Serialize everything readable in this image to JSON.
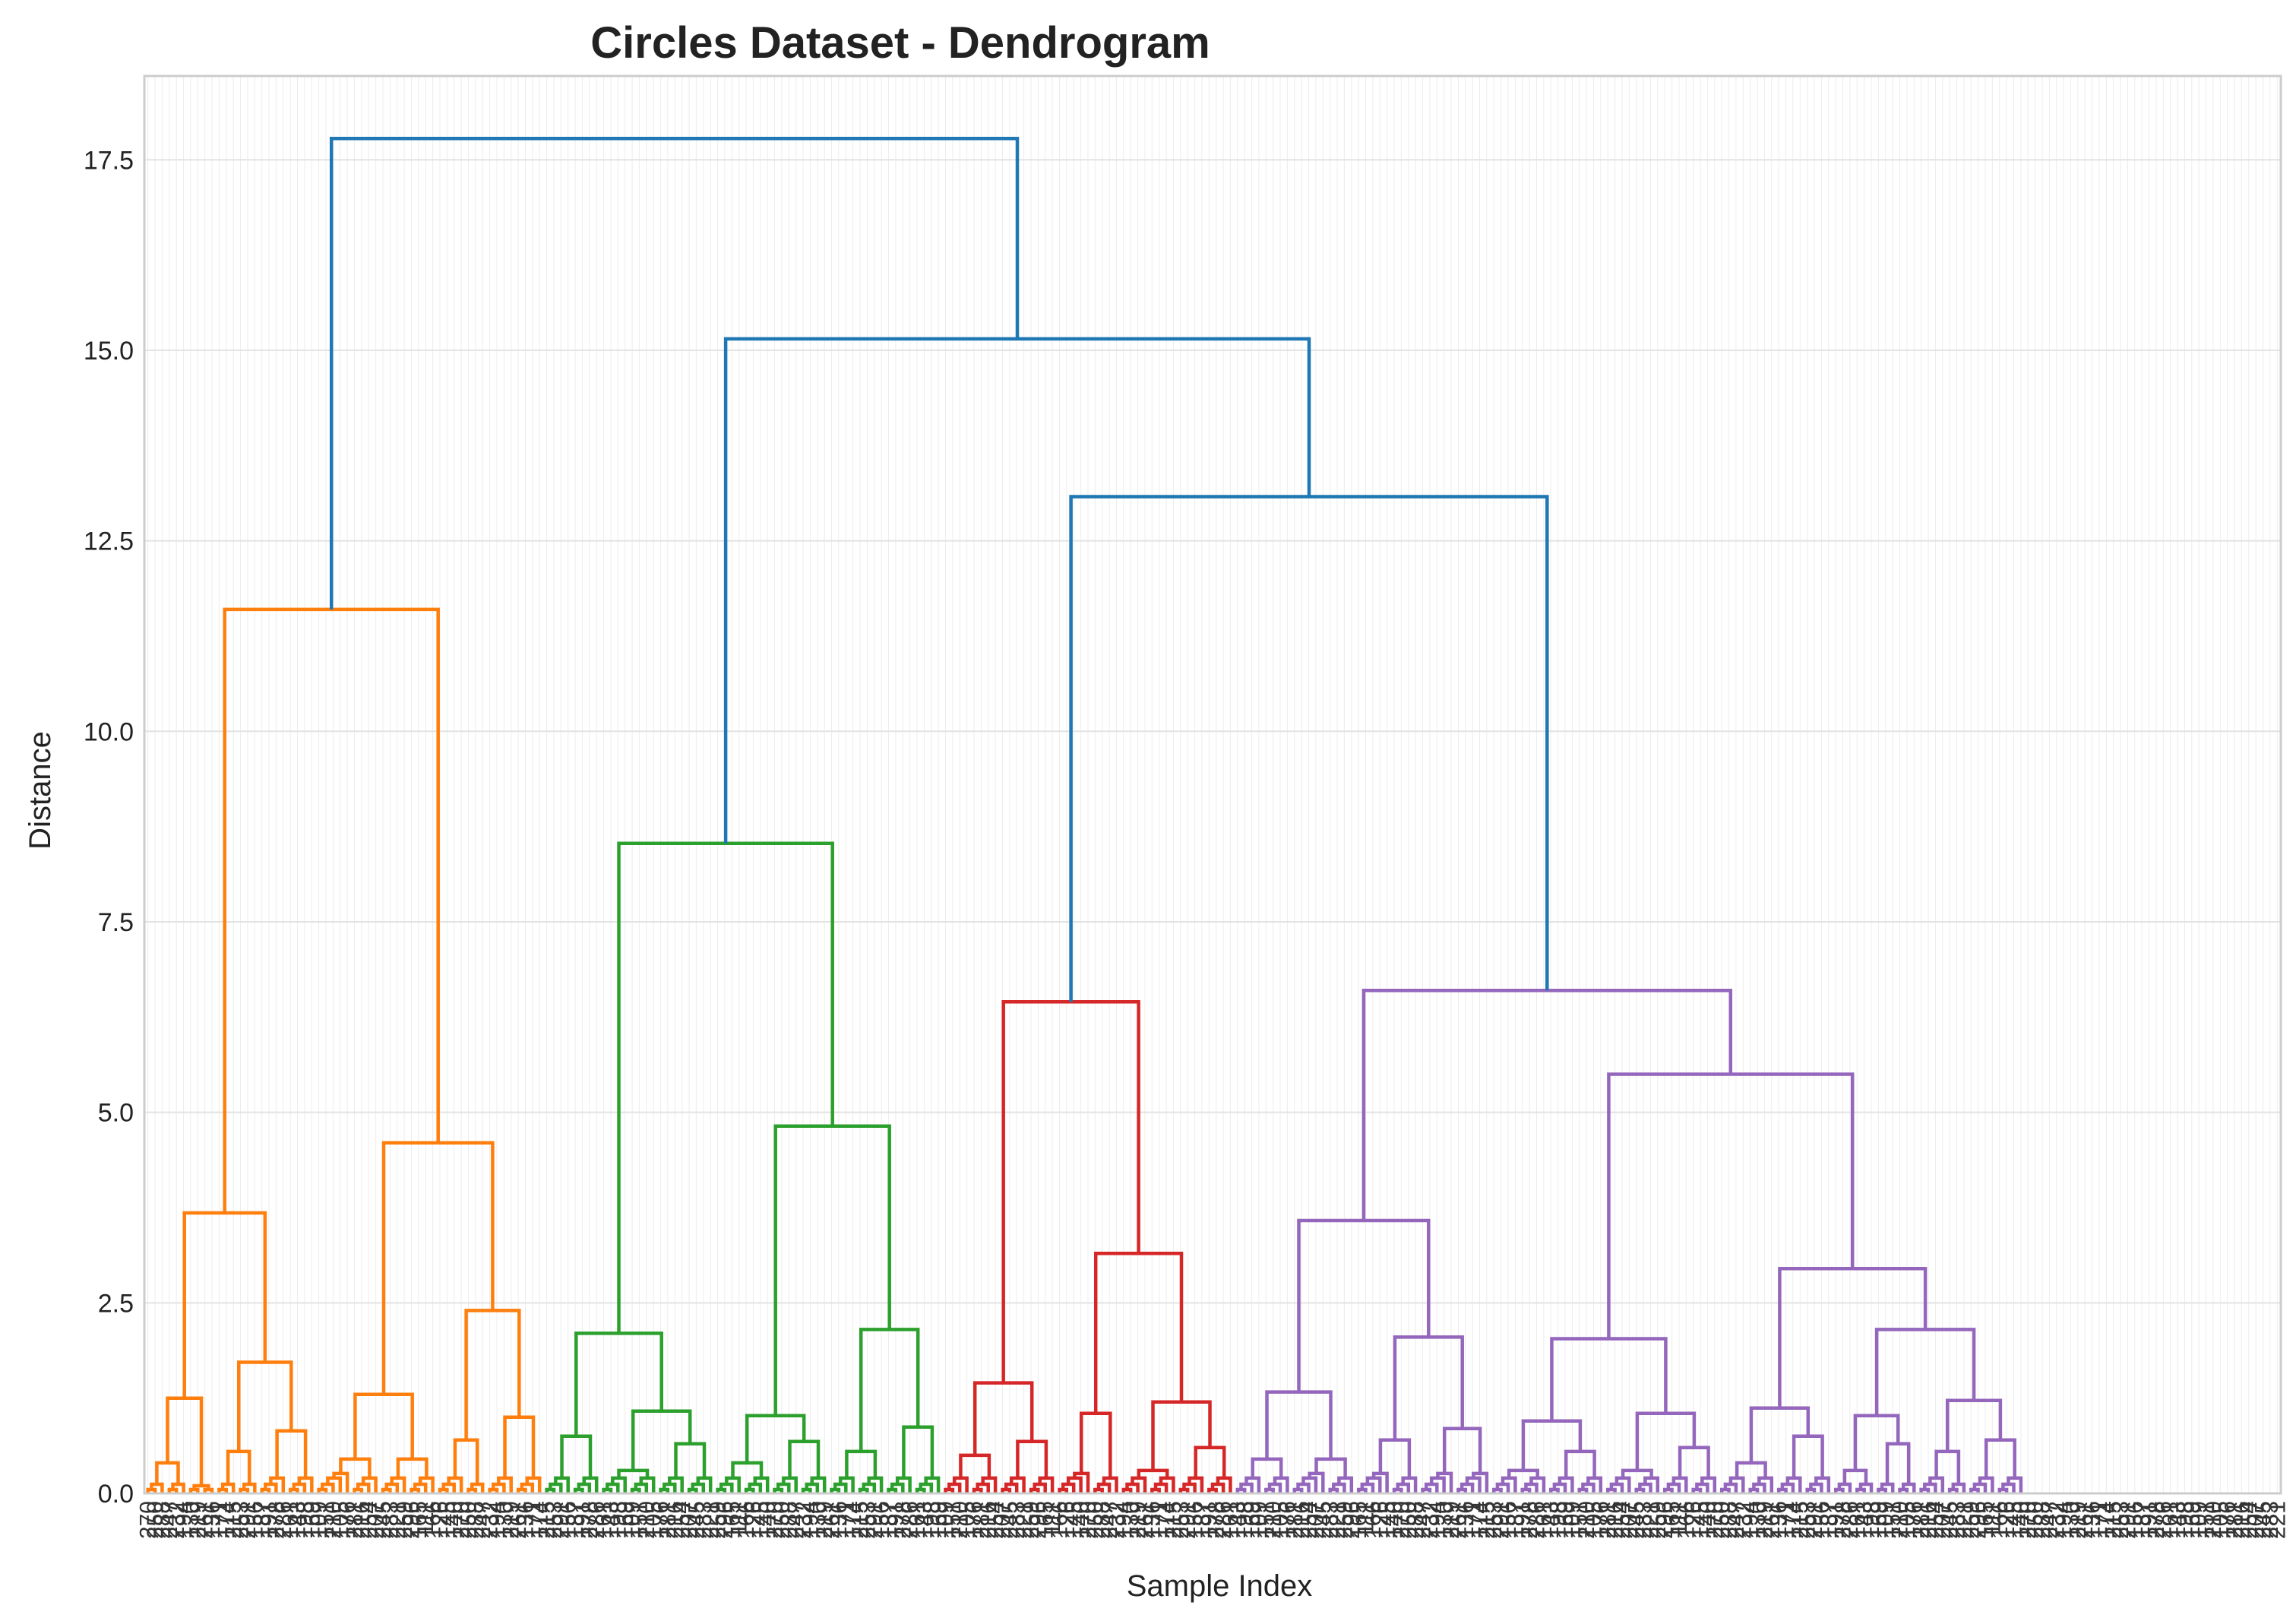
{
  "chart_data": {
    "type": "dendrogram",
    "title": "Circles Dataset - Dendrogram",
    "xlabel": "Sample Index",
    "ylabel": "Distance",
    "ylim": [
      0,
      18.6
    ],
    "yticks": [
      "0.0",
      "2.5",
      "5.0",
      "7.5",
      "10.0",
      "12.5",
      "15.0",
      "17.5"
    ],
    "grid": true,
    "leaf_count": 300,
    "colors": {
      "above_threshold": "#1f77b4",
      "cluster_1": "#ff7f0e",
      "cluster_2": "#2ca02c",
      "cluster_3": "#d62728",
      "cluster_4": "#9467bd"
    },
    "clusters": [
      {
        "color": "#ff7f0e",
        "leaves": 78,
        "tree": [
          11.6,
          [
            3.68,
            [
              1.25,
              [
                0.4,
                3,
                3
              ],
              [
                0.1,
                2,
                2
              ]
            ],
            [
              1.72,
              [
                0.55,
                3,
                3
              ],
              [
                0.82,
                4,
                4
              ]
            ]
          ],
          [
            4.6,
            [
              1.3,
              [
                0.45,
                5,
                4
              ],
              [
                0.45,
                4,
                4
              ]
            ],
            [
              2.4,
              [
                0.7,
                4,
                3
              ],
              [
                1.0,
                4,
                4
              ]
            ]
          ]
        ]
      },
      {
        "color": "#2ca02c",
        "leaves": 68,
        "tree": [
          8.53,
          [
            2.1,
            [
              0.75,
              4,
              4
            ],
            [
              1.08,
              [
                0.3,
                4,
                4
              ],
              [
                0.65,
                4,
                4
              ]
            ]
          ],
          [
            4.82,
            [
              1.02,
              [
                0.4,
                4,
                4
              ],
              [
                0.68,
                4,
                4
              ]
            ],
            [
              2.15,
              [
                0.55,
                4,
                4
              ],
              [
                0.87,
                4,
                4
              ]
            ]
          ]
        ]
      },
      {
        "color": "#d62728",
        "leaves": 47,
        "tree": [
          6.45,
          [
            1.45,
            [
              0.5,
              4,
              4
            ],
            [
              0.68,
              4,
              4
            ]
          ],
          [
            3.15,
            [
              1.05,
              5,
              4
            ],
            [
              1.2,
              [
                0.3,
                4,
                4
              ],
              [
                0.6,
                4,
                4
              ]
            ]
          ]
        ]
      },
      {
        "color": "#9467bd",
        "leaves": 107,
        "tree": [
          6.6,
          [
            3.58,
            [
              1.33,
              [
                0.45,
                4,
                4
              ],
              [
                0.45,
                5,
                4
              ]
            ],
            [
              2.05,
              [
                0.7,
                5,
                4
              ],
              [
                0.85,
                5,
                5
              ]
            ]
          ],
          [
            5.5,
            [
              2.03,
              [
                0.95,
                [
                  0.3,
                  4,
                  4
                ],
                [
                  0.55,
                  4,
                  4
                ]
              ],
              [
                1.05,
                [
                  0.3,
                  4,
                  4
                ],
                [
                  0.6,
                  4,
                  4
                ]
              ]
            ],
            [
              2.95,
              [
                1.12,
                [
                  0.4,
                  4,
                  4
                ],
                [
                  0.75,
                  4,
                  4
                ]
              ],
              [
                2.15,
                [
                  1.02,
                  [
                    0.3,
                    3,
                    3
                  ],
                  [
                    0.65,
                    3,
                    3
                  ]
                ],
                [
                  1.22,
                  [
                    0.55,
                    4,
                    3
                  ],
                  [
                    0.7,
                    4,
                    4
                  ]
                ]
              ]
            ]
          ]
        ]
      }
    ],
    "links_above_threshold": [
      {
        "left": [
          2,
          3
        ],
        "height": 13.08
      },
      {
        "left": 1,
        "right": "prev",
        "height": 15.15
      },
      {
        "left": 0,
        "right": "prev",
        "height": 17.78
      }
    ],
    "leaf_labels_sample": [
      "270",
      "250",
      "288",
      "247",
      "232",
      "194",
      "130",
      "219",
      "261",
      "136",
      "171",
      "174",
      "215",
      "253",
      "291",
      "156",
      "187",
      "191",
      "278",
      "286",
      "161",
      "143",
      "198",
      "169",
      "109",
      "151",
      "210",
      "105",
      "176",
      "281",
      "216",
      "254",
      "207",
      "245",
      "283",
      "221",
      "259",
      "296",
      "165",
      "111",
      "166",
      "126",
      "145",
      "140"
    ]
  }
}
